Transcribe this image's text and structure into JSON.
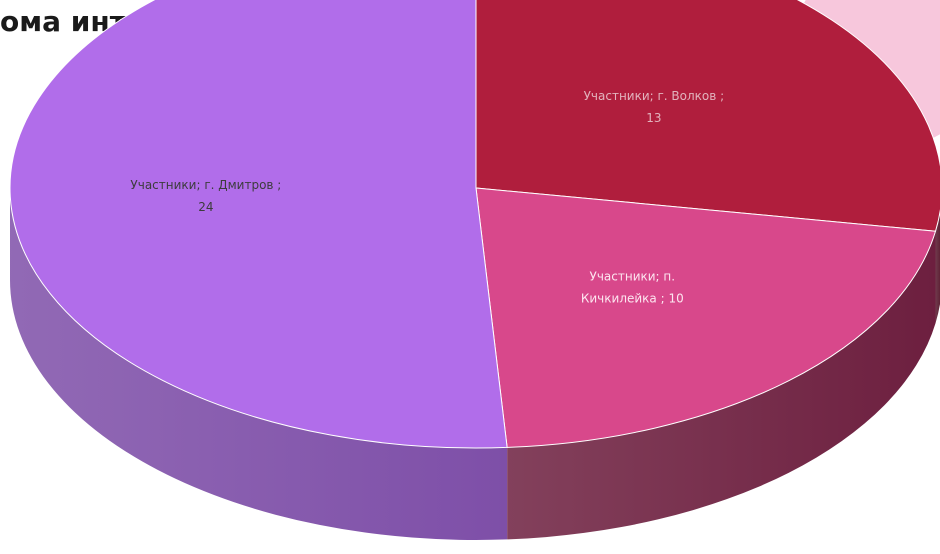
{
  "slide": {
    "title": "ома интернаты:"
  },
  "chart_data": {
    "type": "pie",
    "series": [
      {
        "name": "Участники",
        "categories": [
          "г. Дмитров",
          "г. Волков",
          "п. Кичкилейка"
        ],
        "values": [
          24,
          13,
          10
        ]
      }
    ],
    "data_labels": [
      {
        "line1": "Участники; г. Дмитров ;",
        "line2": "24"
      },
      {
        "line1": "Участники; г. Волков ;",
        "line2": "13"
      },
      {
        "line1": "Участники; п.",
        "line2": "Кичкилейка ; 10"
      }
    ],
    "colors": {
      "slices": [
        "#b16dea",
        "#b01e3d",
        "#d8488b"
      ],
      "sides": [
        "#7e4fa8",
        "#57182d",
        "#6d1f3f"
      ],
      "label_text": [
        "#3c3c3c",
        "#e2b3bd",
        "#fde6f0"
      ]
    },
    "style": "3d",
    "legend": "none"
  }
}
